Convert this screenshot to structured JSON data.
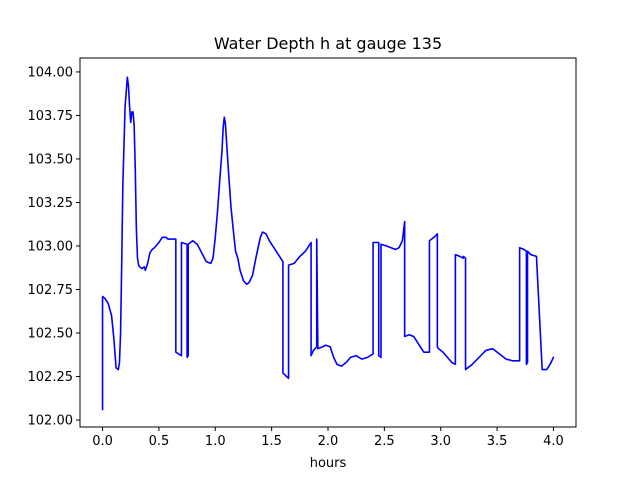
{
  "chart_data": {
    "type": "line",
    "title": "Water Depth h at gauge 135",
    "xlabel": "hours",
    "ylabel": "",
    "xlim": [
      -0.2,
      4.2
    ],
    "ylim": [
      101.96,
      104.08
    ],
    "grid": false,
    "legend": "none",
    "line_color": "#0000ff",
    "x_ticks": [
      0.0,
      0.5,
      1.0,
      1.5,
      2.0,
      2.5,
      3.0,
      3.5,
      4.0
    ],
    "x_tick_labels": [
      "0.0",
      "0.5",
      "1.0",
      "1.5",
      "2.0",
      "2.5",
      "3.0",
      "3.5",
      "4.0"
    ],
    "y_ticks": [
      102.0,
      102.25,
      102.5,
      102.75,
      103.0,
      103.25,
      103.5,
      103.75,
      104.0
    ],
    "y_tick_labels": [
      "102.00",
      "102.25",
      "102.50",
      "102.75",
      "103.00",
      "103.25",
      "103.50",
      "103.75",
      "104.00"
    ],
    "series": [
      {
        "x": [
          0.0,
          0.0,
          0.02,
          0.05,
          0.08,
          0.1,
          0.12,
          0.14,
          0.15,
          0.16,
          0.17,
          0.18,
          0.2,
          0.22,
          0.23,
          0.24,
          0.25,
          0.26,
          0.27,
          0.28,
          0.29,
          0.3,
          0.31,
          0.32,
          0.33,
          0.35,
          0.37,
          0.38,
          0.4,
          0.42,
          0.44,
          0.46,
          0.5,
          0.53,
          0.56,
          0.58,
          0.6,
          0.65,
          0.65,
          0.7,
          0.7,
          0.75,
          0.75,
          0.76,
          0.76,
          0.8,
          0.84,
          0.88,
          0.92,
          0.96,
          0.98,
          1.0,
          1.02,
          1.04,
          1.06,
          1.07,
          1.08,
          1.09,
          1.1,
          1.12,
          1.14,
          1.16,
          1.18,
          1.2,
          1.22,
          1.25,
          1.28,
          1.3,
          1.33,
          1.36,
          1.4,
          1.42,
          1.45,
          1.48,
          1.52,
          1.56,
          1.6,
          1.6,
          1.65,
          1.65,
          1.7,
          1.75,
          1.8,
          1.85,
          1.85,
          1.87,
          1.9,
          1.9,
          1.91,
          1.95,
          1.98,
          2.02,
          2.05,
          2.08,
          2.12,
          2.16,
          2.2,
          2.25,
          2.3,
          2.35,
          2.4,
          2.4,
          2.45,
          2.45,
          2.47,
          2.47,
          2.52,
          2.56,
          2.6,
          2.63,
          2.66,
          2.68,
          2.68,
          2.72,
          2.76,
          2.8,
          2.85,
          2.9,
          2.9,
          2.94,
          2.97,
          2.97,
          2.98,
          3.02,
          3.06,
          3.1,
          3.13,
          3.13,
          3.17,
          3.2,
          3.2,
          3.22,
          3.22,
          3.28,
          3.34,
          3.4,
          3.46,
          3.52,
          3.58,
          3.64,
          3.7,
          3.7,
          3.74,
          3.76,
          3.76,
          3.77,
          3.77,
          3.8,
          3.85,
          3.85,
          3.9,
          3.94,
          3.97,
          4.0
        ],
        "y": [
          102.06,
          102.71,
          102.7,
          102.67,
          102.6,
          102.47,
          102.3,
          102.29,
          102.33,
          102.5,
          102.9,
          103.35,
          103.8,
          103.97,
          103.92,
          103.8,
          103.71,
          103.77,
          103.77,
          103.7,
          103.45,
          103.1,
          102.93,
          102.89,
          102.88,
          102.87,
          102.88,
          102.86,
          102.9,
          102.96,
          102.98,
          102.99,
          103.02,
          103.05,
          103.05,
          103.04,
          103.04,
          103.04,
          102.39,
          102.37,
          103.02,
          103.01,
          102.36,
          102.37,
          103.01,
          103.03,
          103.01,
          102.96,
          102.91,
          102.9,
          102.93,
          103.05,
          103.2,
          103.38,
          103.55,
          103.68,
          103.74,
          103.7,
          103.6,
          103.4,
          103.22,
          103.09,
          102.97,
          102.93,
          102.86,
          102.8,
          102.78,
          102.79,
          102.83,
          102.93,
          103.05,
          103.08,
          103.07,
          103.03,
          102.99,
          102.95,
          102.91,
          102.27,
          102.24,
          102.89,
          102.9,
          102.94,
          102.97,
          103.02,
          102.37,
          102.4,
          102.42,
          103.04,
          102.41,
          102.42,
          102.43,
          102.42,
          102.36,
          102.32,
          102.31,
          102.33,
          102.36,
          102.37,
          102.35,
          102.36,
          102.38,
          103.02,
          103.02,
          102.37,
          102.36,
          103.01,
          103.0,
          102.99,
          102.98,
          102.99,
          103.03,
          103.14,
          102.48,
          102.49,
          102.48,
          102.44,
          102.39,
          102.39,
          103.03,
          103.05,
          103.07,
          102.42,
          102.41,
          102.39,
          102.36,
          102.33,
          102.32,
          102.95,
          102.94,
          102.93,
          102.94,
          102.93,
          102.29,
          102.32,
          102.36,
          102.4,
          102.41,
          102.38,
          102.35,
          102.34,
          102.34,
          102.99,
          102.98,
          102.97,
          102.32,
          102.33,
          102.97,
          102.95,
          102.94,
          102.93,
          102.29,
          102.29,
          102.32,
          102.36
        ]
      }
    ]
  }
}
